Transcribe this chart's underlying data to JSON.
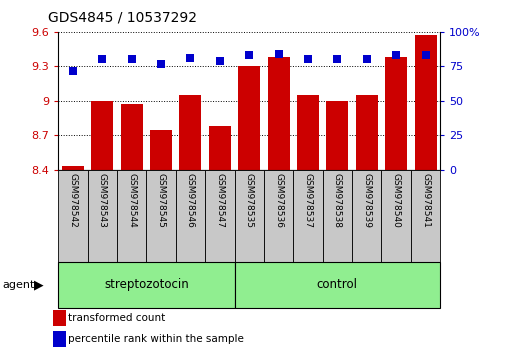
{
  "title": "GDS4845 / 10537292",
  "samples": [
    "GSM978542",
    "GSM978543",
    "GSM978544",
    "GSM978545",
    "GSM978546",
    "GSM978547",
    "GSM978535",
    "GSM978536",
    "GSM978537",
    "GSM978538",
    "GSM978539",
    "GSM978540",
    "GSM978541"
  ],
  "transformed_count": [
    8.43,
    9.0,
    8.97,
    8.75,
    9.05,
    8.78,
    9.3,
    9.38,
    9.05,
    9.0,
    9.05,
    9.38,
    9.57
  ],
  "percentile_rank": [
    72,
    80,
    80,
    77,
    81,
    79,
    83,
    84,
    80,
    80,
    80,
    83,
    83
  ],
  "groups": [
    "streptozotocin",
    "streptozotocin",
    "streptozotocin",
    "streptozotocin",
    "streptozotocin",
    "streptozotocin",
    "control",
    "control",
    "control",
    "control",
    "control",
    "control",
    "control"
  ],
  "ylim_left": [
    8.4,
    9.6
  ],
  "ylim_right": [
    0,
    100
  ],
  "yticks_left": [
    8.4,
    8.7,
    9.0,
    9.3,
    9.6
  ],
  "yticks_right": [
    0,
    25,
    50,
    75,
    100
  ],
  "ytick_labels_left": [
    "8.4",
    "8.7",
    "9",
    "9.3",
    "9.6"
  ],
  "ytick_labels_right": [
    "0",
    "25",
    "50",
    "75",
    "100%"
  ],
  "bar_color": "#CC0000",
  "dot_color": "#0000CC",
  "group_box_color": "#90EE90",
  "sample_box_color": "#C8C8C8",
  "legend_bar_label": "transformed count",
  "legend_dot_label": "percentile rank within the sample",
  "left_axis_color": "#CC0000",
  "right_axis_color": "#0000CC",
  "bar_width": 0.75,
  "dot_size": 30,
  "streptozotocin_range": [
    0,
    5
  ],
  "control_range": [
    6,
    12
  ]
}
